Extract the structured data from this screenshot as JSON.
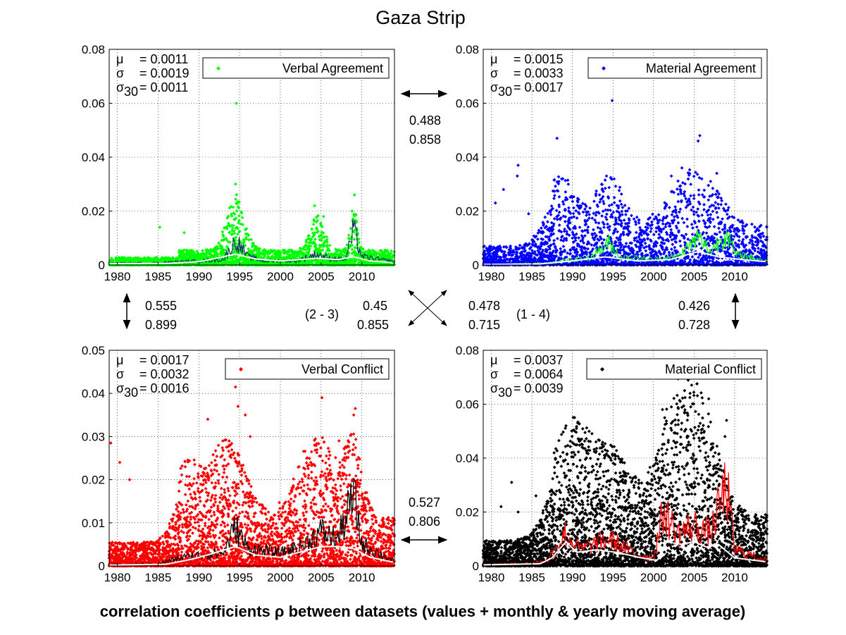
{
  "figure": {
    "title": "Gaza Strip",
    "footer": "correlation coefficients ρ between datasets (values + monthly & yearly moving average)"
  },
  "colors": {
    "verbal_agreement": "#00ff00",
    "material_agreement": "#0000ff",
    "verbal_conflict": "#ff0000",
    "material_conflict": "#000000",
    "yearly_average": "#ffffff"
  },
  "chart_data": [
    {
      "type": "scatter",
      "id": "verbal_agreement",
      "legend": "Verbal Agreement",
      "legend_placement": "top-right",
      "grid": true,
      "xlim": [
        1979,
        2014
      ],
      "ylim": [
        0,
        0.08
      ],
      "xticks": [
        "1980",
        "1985",
        "1990",
        "1995",
        "2000",
        "2005",
        "2010"
      ],
      "yticks": [
        "0",
        "0.02",
        "0.04",
        "0.06",
        "0.08"
      ],
      "stats": {
        "mu": "= 0.0011",
        "sigma": "= 0.0019",
        "sigma30": "= 0.0011"
      },
      "baseline": 0.0025,
      "spread": 0.0035,
      "density": 7,
      "peaks": [
        [
          1994.6,
          0.06
        ],
        [
          1994.5,
          0.03
        ],
        [
          1988.2,
          0.012
        ],
        [
          1985.2,
          0.014
        ],
        [
          2004.2,
          0.022
        ],
        [
          2009.1,
          0.026
        ],
        [
          2008.8,
          0.02
        ],
        [
          2005.3,
          0.018
        ]
      ],
      "bursts": [
        [
          1994.5,
          0.013,
          1.5
        ],
        [
          2004.5,
          0.008,
          1.2
        ],
        [
          2009,
          0.01,
          0.6
        ]
      ],
      "monthly": [
        [
          1979,
          0.0006
        ],
        [
          1985,
          0.0008
        ],
        [
          1988,
          0.0012
        ],
        [
          1990,
          0.0015
        ],
        [
          1993,
          0.002
        ],
        [
          1994.6,
          0.009
        ],
        [
          1996,
          0.003
        ],
        [
          1998,
          0.0015
        ],
        [
          2002,
          0.0015
        ],
        [
          2004.5,
          0.004
        ],
        [
          2006,
          0.0025
        ],
        [
          2008,
          0.002
        ],
        [
          2009,
          0.013
        ],
        [
          2010,
          0.003
        ],
        [
          2014,
          0.0012
        ]
      ],
      "yearly": [
        [
          1979,
          0.0005
        ],
        [
          1986,
          0.0006
        ],
        [
          1990,
          0.0012
        ],
        [
          1994.5,
          0.004
        ],
        [
          1997,
          0.0022
        ],
        [
          2000,
          0.0015
        ],
        [
          2004.5,
          0.0025
        ],
        [
          2007,
          0.002
        ],
        [
          2009,
          0.003
        ],
        [
          2011,
          0.0015
        ],
        [
          2014,
          0.0008
        ]
      ]
    },
    {
      "type": "scatter",
      "id": "material_agreement",
      "legend": "Material Agreement",
      "legend_placement": "top-right",
      "grid": true,
      "xlim": [
        1979,
        2014
      ],
      "ylim": [
        0,
        0.08
      ],
      "xticks": [
        "1980",
        "1985",
        "1990",
        "1995",
        "2000",
        "2005",
        "2010"
      ],
      "yticks": [
        "0",
        "0.02",
        "0.04",
        "0.06",
        "0.08"
      ],
      "stats": {
        "mu": "= 0.0015",
        "sigma": "= 0.0033",
        "sigma30": "= 0.0017"
      },
      "baseline": 0.004,
      "spread": 0.009,
      "density": 6,
      "peaks": [
        [
          1994.9,
          0.061
        ],
        [
          1988.1,
          0.047
        ],
        [
          2005.7,
          0.048
        ],
        [
          2005.5,
          0.046
        ],
        [
          1983.3,
          0.037
        ],
        [
          1983.2,
          0.033
        ],
        [
          1994.2,
          0.033
        ],
        [
          1988.8,
          0.032
        ],
        [
          2003.5,
          0.036
        ],
        [
          2002.2,
          0.033
        ],
        [
          2007.8,
          0.034
        ],
        [
          1980.5,
          0.023
        ],
        [
          1981.5,
          0.028
        ],
        [
          1984.6,
          0.019
        ],
        [
          1989.2,
          0.025
        ]
      ],
      "bursts": [
        [
          1988.5,
          0.012,
          2.5
        ],
        [
          1994.5,
          0.012,
          2.5
        ],
        [
          2005,
          0.014,
          4
        ]
      ],
      "monthly": [
        [
          1979,
          0.0002
        ],
        [
          1985,
          0.0005
        ],
        [
          1988,
          0.001
        ],
        [
          1990,
          0.002
        ],
        [
          1992,
          0.0025
        ],
        [
          1994.5,
          0.008
        ],
        [
          1996,
          0.003
        ],
        [
          2000,
          0.002
        ],
        [
          2003,
          0.003
        ],
        [
          2005.5,
          0.01
        ],
        [
          2007,
          0.005
        ],
        [
          2009,
          0.012
        ],
        [
          2010,
          0.004
        ],
        [
          2014,
          0.0015
        ]
      ],
      "yearly": [
        [
          1979,
          0.0002
        ],
        [
          1986,
          0.0004
        ],
        [
          1990,
          0.0015
        ],
        [
          1994,
          0.003
        ],
        [
          1998,
          0.0015
        ],
        [
          2002,
          0.002
        ],
        [
          2005.5,
          0.005
        ],
        [
          2008,
          0.003
        ],
        [
          2011,
          0.002
        ],
        [
          2014,
          0.0012
        ]
      ]
    },
    {
      "type": "scatter",
      "id": "verbal_conflict",
      "legend": "Verbal Conflict",
      "legend_placement": "top-right",
      "grid": true,
      "xlim": [
        1979,
        2014
      ],
      "ylim": [
        0,
        0.05
      ],
      "xticks": [
        "1980",
        "1985",
        "1990",
        "1995",
        "2000",
        "2005",
        "2010"
      ],
      "yticks": [
        "0",
        "0.01",
        "0.02",
        "0.03",
        "0.04",
        "0.05"
      ],
      "stats": {
        "mu": "= 0.0017",
        "sigma": "= 0.0032",
        "sigma30": "= 0.0016"
      },
      "baseline": 0.004,
      "spread": 0.007,
      "density": 9,
      "peaks": [
        [
          1994.5,
          0.0415
        ],
        [
          1994.8,
          0.037
        ],
        [
          1995.7,
          0.035
        ],
        [
          1991.1,
          0.034
        ],
        [
          2005.1,
          0.039
        ],
        [
          2009.2,
          0.0365
        ],
        [
          2009.0,
          0.035
        ],
        [
          1979.2,
          0.0285
        ],
        [
          1980.3,
          0.024
        ],
        [
          1981.5,
          0.02
        ],
        [
          1996.3,
          0.03
        ],
        [
          2004.2,
          0.028
        ],
        [
          2007.2,
          0.029
        ]
      ],
      "bursts": [
        [
          1993.5,
          0.012,
          3
        ],
        [
          2004.5,
          0.012,
          3.5
        ],
        [
          2009,
          0.01,
          1.5
        ],
        [
          1988.5,
          0.008,
          2
        ]
      ],
      "monthly": [
        [
          1979,
          0.0003
        ],
        [
          1985,
          0.0005
        ],
        [
          1988,
          0.002
        ],
        [
          1990,
          0.0025
        ],
        [
          1993,
          0.003
        ],
        [
          1994.5,
          0.009
        ],
        [
          1996,
          0.004
        ],
        [
          2000,
          0.003
        ],
        [
          2003,
          0.005
        ],
        [
          2005,
          0.008
        ],
        [
          2007,
          0.006
        ],
        [
          2009,
          0.016
        ],
        [
          2010,
          0.005
        ],
        [
          2014,
          0.001
        ]
      ],
      "yearly": [
        [
          1979,
          0.0002
        ],
        [
          1986,
          0.0004
        ],
        [
          1989,
          0.0015
        ],
        [
          1991,
          0.0025
        ],
        [
          1994.5,
          0.0045
        ],
        [
          1997,
          0.0025
        ],
        [
          2000,
          0.002
        ],
        [
          2002,
          0.003
        ],
        [
          2005,
          0.0045
        ],
        [
          2007,
          0.0045
        ],
        [
          2009,
          0.004
        ],
        [
          2011,
          0.002
        ],
        [
          2014,
          0.0008
        ]
      ]
    },
    {
      "type": "scatter",
      "id": "material_conflict",
      "legend": "Material Conflict",
      "legend_placement": "top-right",
      "grid": true,
      "xlim": [
        1979,
        2014
      ],
      "ylim": [
        0,
        0.08
      ],
      "xticks": [
        "1980",
        "1985",
        "1990",
        "1995",
        "2000",
        "2005",
        "2010"
      ],
      "yticks": [
        "0",
        "0.02",
        "0.04",
        "0.06",
        "0.08"
      ],
      "stats": {
        "mu": "= 0.0037",
        "sigma": "= 0.0064",
        "sigma30": "= 0.0039"
      },
      "baseline": 0.006,
      "spread": 0.012,
      "density": 10,
      "peaks": [
        [
          2006.8,
          0.062
        ],
        [
          2001.1,
          0.058
        ],
        [
          2002.2,
          0.059
        ],
        [
          1989.2,
          0.052
        ],
        [
          1990.5,
          0.051
        ],
        [
          2009.0,
          0.054
        ],
        [
          2008.8,
          0.048
        ],
        [
          2004.7,
          0.05
        ],
        [
          1982.5,
          0.031
        ],
        [
          1985.5,
          0.026
        ],
        [
          1981.2,
          0.022
        ],
        [
          1983.3,
          0.02
        ]
      ],
      "bursts": [
        [
          1989.5,
          0.02,
          3
        ],
        [
          1994.5,
          0.016,
          3.5
        ],
        [
          2002.5,
          0.025,
          3
        ],
        [
          2006,
          0.022,
          3
        ]
      ],
      "monthly": [
        [
          1979,
          0.0005
        ],
        [
          1985,
          0.001
        ],
        [
          1987,
          0.002
        ],
        [
          1989,
          0.012
        ],
        [
          1991,
          0.006
        ],
        [
          1994.5,
          0.01
        ],
        [
          1998,
          0.004
        ],
        [
          2000,
          0.003
        ],
        [
          2001.2,
          0.02
        ],
        [
          2003,
          0.012
        ],
        [
          2005,
          0.015
        ],
        [
          2007,
          0.012
        ],
        [
          2009,
          0.03
        ],
        [
          2010,
          0.006
        ],
        [
          2014,
          0.002
        ]
      ],
      "yearly": [
        [
          1979,
          0.0004
        ],
        [
          1986,
          0.0008
        ],
        [
          1987.5,
          0.003
        ],
        [
          1989.2,
          0.009
        ],
        [
          1990.5,
          0.005
        ],
        [
          1993,
          0.006
        ],
        [
          1995.5,
          0.005
        ],
        [
          1998.5,
          0.003
        ],
        [
          2000.5,
          0.002
        ],
        [
          2001.5,
          0.009
        ],
        [
          2003.5,
          0.008
        ],
        [
          2005,
          0.009
        ],
        [
          2006.5,
          0.007
        ],
        [
          2008,
          0.008
        ],
        [
          2010,
          0.003
        ],
        [
          2014,
          0.0015
        ]
      ]
    }
  ],
  "correlations": {
    "pair_1_2": [
      "0.488",
      "0.858"
    ],
    "pair_1_3": [
      "0.555",
      "0.899"
    ],
    "pair_2_3_label": "(2 - 3)",
    "pair_2_3": [
      "0.45",
      "0.855"
    ],
    "pair_1_4_label": "(1 - 4)",
    "pair_1_4": [
      "0.478",
      "0.715"
    ],
    "pair_2_4": [
      "0.426",
      "0.728"
    ],
    "pair_3_4": [
      "0.527",
      "0.806"
    ]
  }
}
